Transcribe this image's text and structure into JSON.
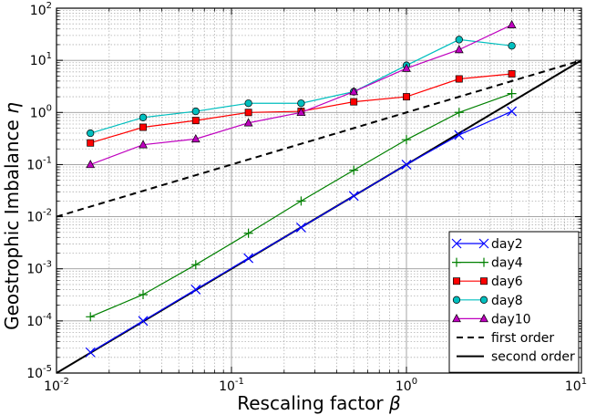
{
  "chart_data": {
    "type": "line",
    "title": "",
    "xlabel": "Rescaling factor",
    "xlabel_symbol": "β",
    "ylabel": "Geostrophic Imbalance",
    "ylabel_symbol": "η",
    "xscale": "log",
    "yscale": "log",
    "xlim": [
      0.01,
      10
    ],
    "ylim": [
      1e-05,
      100
    ],
    "grid": true,
    "legend_position": "lower-right",
    "x_ticks": [
      {
        "base": "10",
        "exp": "-2"
      },
      {
        "base": "10",
        "exp": "-1"
      },
      {
        "base": "10",
        "exp": "0"
      },
      {
        "base": "10",
        "exp": "1"
      }
    ],
    "y_ticks": [
      {
        "base": "10",
        "exp": "-5"
      },
      {
        "base": "10",
        "exp": "-4"
      },
      {
        "base": "10",
        "exp": "-3"
      },
      {
        "base": "10",
        "exp": "-2"
      },
      {
        "base": "10",
        "exp": "-1"
      },
      {
        "base": "10",
        "exp": "0"
      },
      {
        "base": "10",
        "exp": "1"
      },
      {
        "base": "10",
        "exp": "2"
      }
    ],
    "x": [
      0.015625,
      0.03125,
      0.0625,
      0.125,
      0.25,
      0.5,
      1,
      2,
      4
    ],
    "series": [
      {
        "name": "day2",
        "color": "#0000ff",
        "marker": "x",
        "values": [
          2.5e-05,
          0.0001,
          0.0004,
          0.0016,
          0.0062,
          0.025,
          0.1,
          0.37,
          1.05
        ]
      },
      {
        "name": "day4",
        "color": "#008000",
        "marker": "plus",
        "values": [
          0.00012,
          0.00032,
          0.0012,
          0.0048,
          0.02,
          0.078,
          0.3,
          1.0,
          2.3
        ]
      },
      {
        "name": "day6",
        "color": "#ff0000",
        "marker": "square",
        "values": [
          0.26,
          0.52,
          0.7,
          1.0,
          1.05,
          1.6,
          2.0,
          4.4,
          5.5
        ]
      },
      {
        "name": "day8",
        "color": "#00bfbf",
        "marker": "circle",
        "values": [
          0.4,
          0.8,
          1.05,
          1.5,
          1.5,
          2.5,
          8.0,
          25,
          19
        ]
      },
      {
        "name": "day10",
        "color": "#bf00bf",
        "marker": "triangle",
        "values": [
          0.1,
          0.24,
          0.31,
          0.63,
          1.0,
          2.5,
          7.0,
          16,
          48
        ]
      }
    ],
    "reference_lines": [
      {
        "name": "first order",
        "color": "#000000",
        "style": "dashed",
        "x": [
          0.01,
          10
        ],
        "y": [
          0.01,
          10
        ]
      },
      {
        "name": "second order",
        "color": "#000000",
        "style": "solid",
        "x": [
          0.01,
          10
        ],
        "y": [
          1e-05,
          10
        ]
      }
    ]
  }
}
